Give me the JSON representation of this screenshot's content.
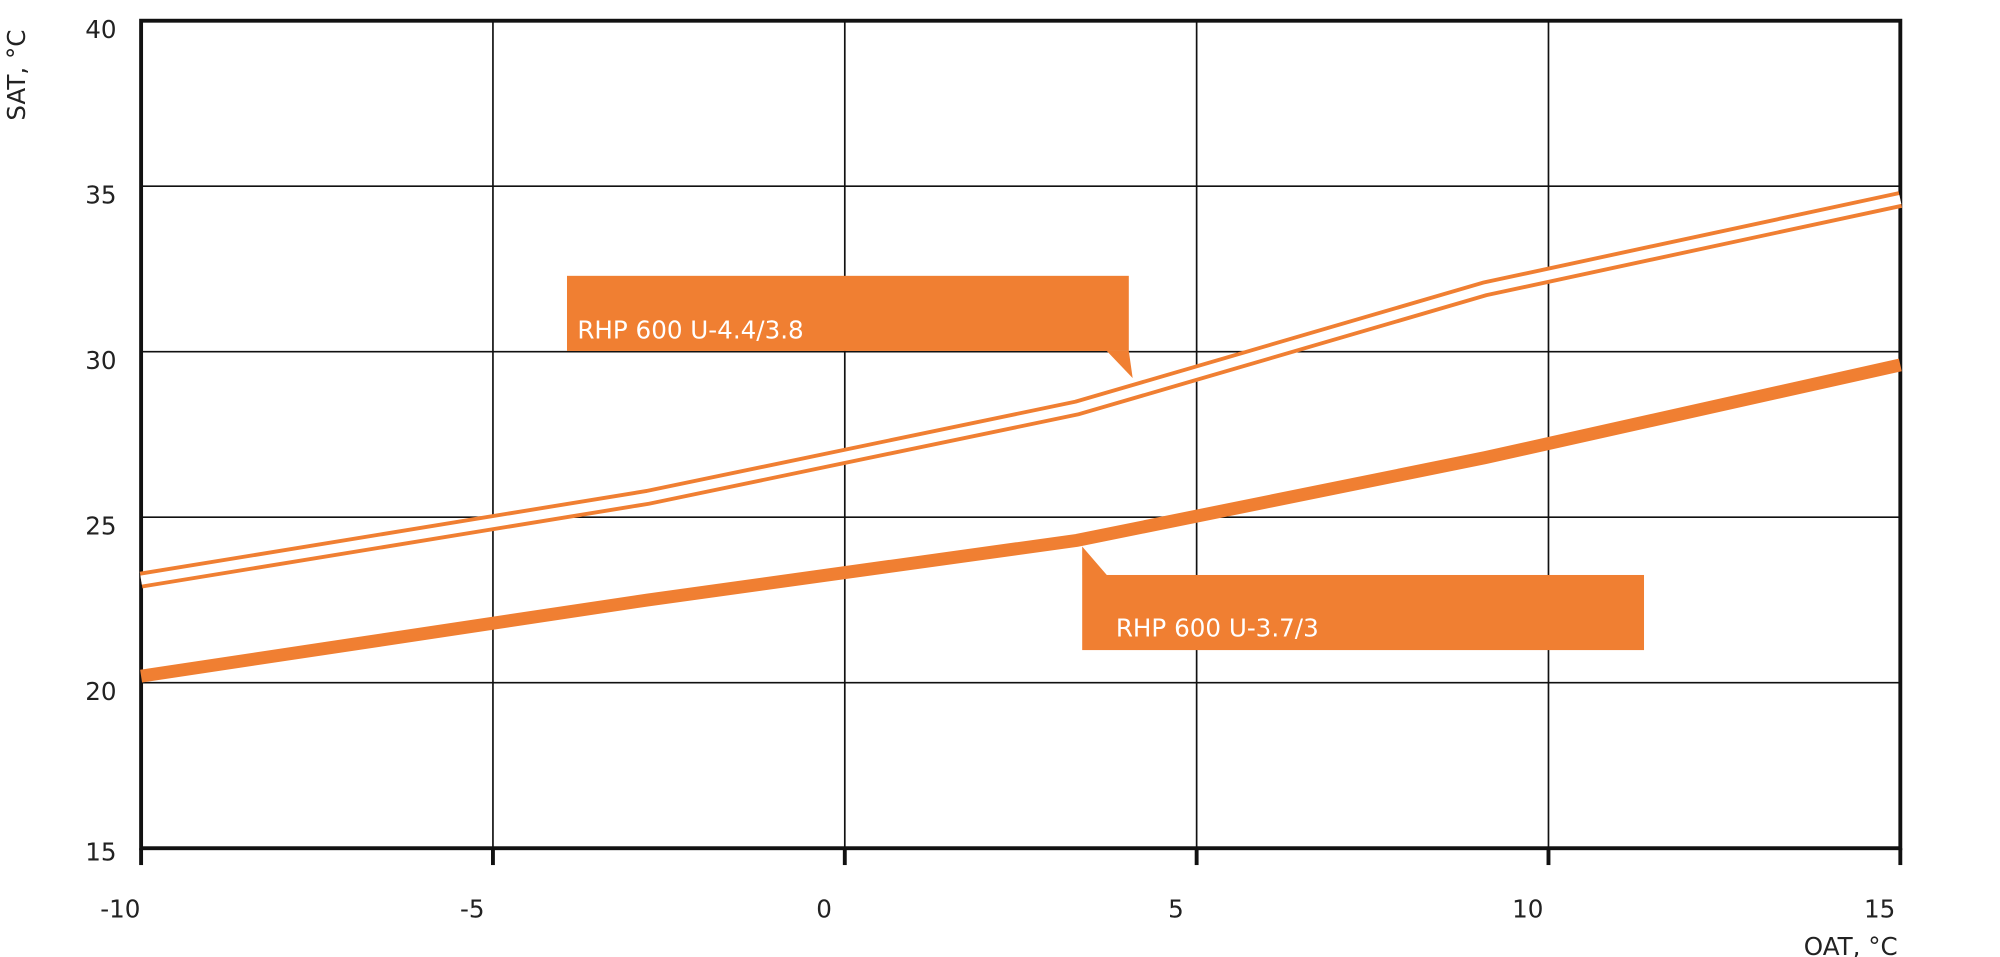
{
  "chart_data": {
    "type": "line",
    "x_label": "OAT, °C",
    "y_label": "SAT, °C",
    "x": [
      -10,
      -2.8,
      3.3,
      9.1,
      15
    ],
    "series": [
      {
        "name": "RHP 600 U-4.4/3.8",
        "color": "#f07f32",
        "style": "double",
        "values": [
          23.1,
          25.6,
          28.3,
          31.9,
          34.6
        ]
      },
      {
        "name": "RHP 600 U-3.7/3",
        "color": "#f07f32",
        "style": "solid",
        "values": [
          20.2,
          22.5,
          24.3,
          26.8,
          29.6
        ]
      }
    ],
    "xlim": [
      -10,
      15
    ],
    "xticks": [
      -10,
      -5,
      0,
      5,
      10,
      15
    ],
    "ylim": [
      15,
      40
    ],
    "yticks": [
      15,
      20,
      25,
      30,
      35,
      40
    ],
    "grid": true
  }
}
